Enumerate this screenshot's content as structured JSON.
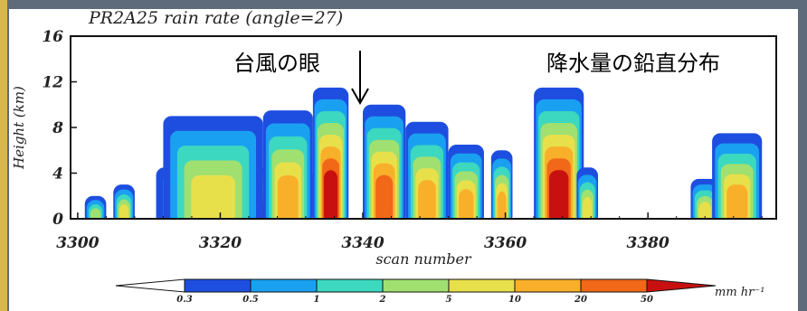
{
  "figure": {
    "title": "PR2A25 rain rate (angle=27)",
    "annotation_eye": "台風の眼",
    "annotation_profile": "降水量の鉛直分布",
    "arrow_symbol": "↓"
  },
  "chart_data": {
    "type": "heatmap",
    "title": "PR2A25 rain rate (angle=27)",
    "xlabel": "scan number",
    "ylabel": "Height (km)",
    "xlim": [
      3299,
      3398
    ],
    "ylim": [
      0,
      16
    ],
    "x_ticks": [
      3300,
      3320,
      3340,
      3360,
      3380
    ],
    "y_ticks": [
      0,
      4,
      8,
      12,
      16
    ],
    "grid": false,
    "colorbar": {
      "boundaries": [
        "0.3",
        "0.5",
        "1",
        "2",
        "5",
        "10",
        "20",
        "50"
      ],
      "unit": "mm hr⁻¹",
      "colors": [
        "#1e4ee0",
        "#1aa0f0",
        "#3cd8c0",
        "#a0e070",
        "#e8e04a",
        "#f8b02a",
        "#f06818",
        "#c81010"
      ]
    },
    "annotations": [
      {
        "text": "台風の眼",
        "x": 3339,
        "y": 12.5
      },
      {
        "text": "降水量の鉛直分布",
        "x": 3380,
        "y": 12.5
      }
    ],
    "cells": [
      {
        "x0": 3301,
        "x1": 3304,
        "top": 2.0,
        "core": 0.5
      },
      {
        "x0": 3305,
        "x1": 3308,
        "top": 3.0,
        "core": 0.6
      },
      {
        "x0": 3311,
        "x1": 3333,
        "top": 4.5,
        "core": 1.0
      },
      {
        "x0": 3312,
        "x1": 3326,
        "top": 9.0,
        "core": 0.6
      },
      {
        "x0": 3326,
        "x1": 3333,
        "top": 9.5,
        "core": 0.7
      },
      {
        "x0": 3333,
        "x1": 3338,
        "top": 11.5,
        "core": 1.0
      },
      {
        "x0": 3340,
        "x1": 3346,
        "top": 10.0,
        "core": 0.9
      },
      {
        "x0": 3346,
        "x1": 3352,
        "top": 8.5,
        "core": 0.8
      },
      {
        "x0": 3352,
        "x1": 3357,
        "top": 6.5,
        "core": 0.7
      },
      {
        "x0": 3358,
        "x1": 3361,
        "top": 6.0,
        "core": 0.7
      },
      {
        "x0": 3364,
        "x1": 3371,
        "top": 11.5,
        "core": 1.0
      },
      {
        "x0": 3370,
        "x1": 3373,
        "top": 4.5,
        "core": 0.6
      },
      {
        "x0": 3386,
        "x1": 3390,
        "top": 3.5,
        "core": 0.6
      },
      {
        "x0": 3389,
        "x1": 3396,
        "top": 7.5,
        "core": 0.8
      }
    ]
  }
}
